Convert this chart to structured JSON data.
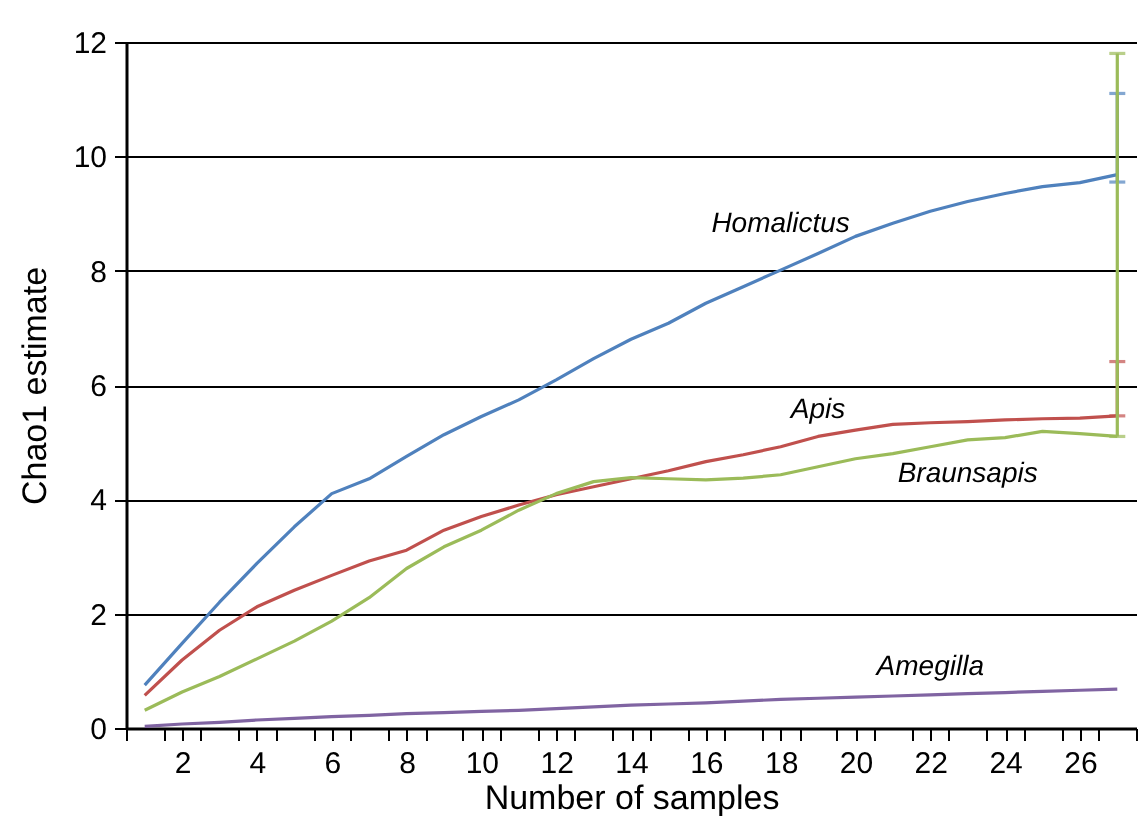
{
  "chart_data": {
    "type": "line",
    "xlabel": "Number of samples",
    "ylabel": "Chao1 estimate",
    "x": [
      1,
      2,
      3,
      4,
      5,
      6,
      7,
      8,
      9,
      10,
      11,
      12,
      13,
      14,
      15,
      16,
      17,
      18,
      19,
      20,
      21,
      22,
      23,
      24,
      25,
      26,
      27
    ],
    "xlim": [
      0.5,
      27.5
    ],
    "xticks": [
      {
        "value": 0.5,
        "label": null
      },
      {
        "value": 1.5,
        "label": null
      },
      2,
      {
        "value": 2.5,
        "label": null
      },
      {
        "value": 3.5,
        "label": null
      },
      4,
      {
        "value": 4.5,
        "label": null
      },
      {
        "value": 5.5,
        "label": null
      },
      6,
      {
        "value": 6.5,
        "label": null
      },
      {
        "value": 7.5,
        "label": null
      },
      8,
      {
        "value": 8.5,
        "label": null
      },
      {
        "value": 9.5,
        "label": null
      },
      10,
      {
        "value": 10.5,
        "label": null
      },
      {
        "value": 11.5,
        "label": null
      },
      12,
      {
        "value": 12.5,
        "label": null
      },
      {
        "value": 13.5,
        "label": null
      },
      14,
      {
        "value": 14.5,
        "label": null
      },
      {
        "value": 15.5,
        "label": null
      },
      16,
      {
        "value": 16.5,
        "label": null
      },
      {
        "value": 17.5,
        "label": null
      },
      18,
      {
        "value": 18.5,
        "label": null
      },
      {
        "value": 19.5,
        "label": null
      },
      20,
      {
        "value": 20.5,
        "label": null
      },
      {
        "value": 21.5,
        "label": null
      },
      22,
      {
        "value": 22.5,
        "label": null
      },
      {
        "value": 23.5,
        "label": null
      },
      24,
      {
        "value": 24.5,
        "label": null
      },
      {
        "value": 25.5,
        "label": null
      },
      26,
      {
        "value": 26.5,
        "label": null
      },
      {
        "value": 27.5,
        "label": null
      }
    ],
    "ylim": [
      0,
      12
    ],
    "yticks": [
      0,
      2,
      4,
      6,
      8,
      10,
      12
    ],
    "grid": "y",
    "legend": false,
    "marker": "none",
    "line_style": "solid",
    "series": [
      {
        "name": "Homalictus",
        "color": "#4f81bd",
        "values": [
          0.75,
          1.48,
          2.2,
          2.88,
          3.52,
          4.1,
          4.36,
          4.75,
          5.13,
          5.45,
          5.74,
          6.09,
          6.46,
          6.8,
          7.08,
          7.43,
          7.72,
          8.01,
          8.3,
          8.6,
          8.83,
          9.04,
          9.21,
          9.35,
          9.47,
          9.54,
          9.68
        ],
        "errors": [
          null,
          null,
          null,
          null,
          null,
          null,
          null,
          null,
          null,
          null,
          null,
          null,
          null,
          null,
          null,
          null,
          null,
          null,
          null,
          null,
          null,
          null,
          null,
          null,
          null,
          null,
          [
            9.55,
            11.1
          ]
        ]
      },
      {
        "name": "Apis",
        "color": "#c0504d",
        "values": [
          0.57,
          1.19,
          1.71,
          2.12,
          2.41,
          2.67,
          2.92,
          3.11,
          3.46,
          3.7,
          3.9,
          4.08,
          4.22,
          4.36,
          4.5,
          4.66,
          4.78,
          4.92,
          5.1,
          5.21,
          5.31,
          5.34,
          5.36,
          5.39,
          5.41,
          5.42,
          5.46
        ],
        "errors": [
          null,
          null,
          null,
          null,
          null,
          null,
          null,
          null,
          null,
          null,
          null,
          null,
          null,
          null,
          null,
          null,
          null,
          null,
          null,
          null,
          null,
          null,
          null,
          null,
          null,
          null,
          [
            5.46,
            6.41
          ]
        ]
      },
      {
        "name": "Braunsapis",
        "color": "#9bbb59",
        "values": [
          0.31,
          0.63,
          0.9,
          1.21,
          1.52,
          1.87,
          2.28,
          2.79,
          3.17,
          3.46,
          3.81,
          4.1,
          4.31,
          4.38,
          4.36,
          4.34,
          4.37,
          4.43,
          4.57,
          4.71,
          4.8,
          4.92,
          5.04,
          5.08,
          5.19,
          5.15,
          5.1
        ],
        "errors": [
          null,
          null,
          null,
          null,
          null,
          null,
          null,
          null,
          null,
          null,
          null,
          null,
          null,
          null,
          null,
          null,
          null,
          null,
          null,
          null,
          null,
          null,
          null,
          null,
          null,
          null,
          [
            5.1,
            11.8
          ]
        ]
      },
      {
        "name": "Amegilla",
        "color": "#8064a2",
        "values": [
          0.03,
          0.07,
          0.1,
          0.14,
          0.17,
          0.2,
          0.22,
          0.25,
          0.27,
          0.29,
          0.31,
          0.34,
          0.37,
          0.4,
          0.42,
          0.44,
          0.47,
          0.5,
          0.52,
          0.54,
          0.56,
          0.58,
          0.6,
          0.62,
          0.64,
          0.66,
          0.68
        ]
      }
    ]
  }
}
